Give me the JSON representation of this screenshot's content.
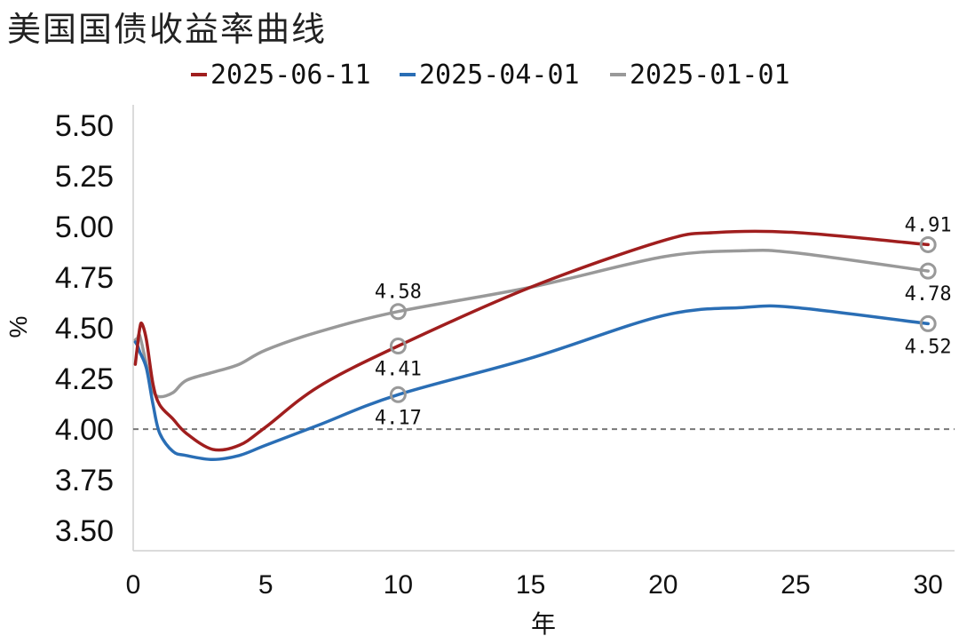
{
  "chart_data": {
    "type": "line",
    "title": "美国国债收益率曲线",
    "xlabel": "年",
    "ylabel": "%",
    "xlim": [
      0,
      31
    ],
    "ylim": [
      3.4,
      5.6
    ],
    "x_ticks": [
      0,
      5,
      10,
      15,
      20,
      25,
      30
    ],
    "x_tick_labels": [
      "0",
      "5",
      "10",
      "15",
      "20",
      "25",
      "30"
    ],
    "y_ticks": [
      3.5,
      3.75,
      4.0,
      4.25,
      4.5,
      4.75,
      5.0,
      5.25,
      5.5
    ],
    "y_tick_labels": [
      "3.50",
      "3.75",
      "4.00",
      "4.25",
      "4.50",
      "4.75",
      "5.00",
      "5.25",
      "5.50"
    ],
    "reference_line": {
      "y": 4.0,
      "style": "dashed",
      "color": "#777777"
    },
    "grid": false,
    "legend_position": "top-center",
    "series": [
      {
        "name": "2025-06-11",
        "color": "#A01E1E",
        "points": [
          [
            0.08,
            4.32
          ],
          [
            0.17,
            4.42
          ],
          [
            0.25,
            4.5
          ],
          [
            0.33,
            4.52
          ],
          [
            0.5,
            4.44
          ],
          [
            0.75,
            4.22
          ],
          [
            1,
            4.12
          ],
          [
            1.5,
            4.05
          ],
          [
            2,
            3.98
          ],
          [
            3,
            3.9
          ],
          [
            4,
            3.92
          ],
          [
            5,
            4.01
          ],
          [
            7,
            4.21
          ],
          [
            10,
            4.41
          ],
          [
            15,
            4.7
          ],
          [
            20,
            4.93
          ],
          [
            22,
            4.97
          ],
          [
            25,
            4.97
          ],
          [
            30,
            4.91
          ]
        ]
      },
      {
        "name": "2025-04-01",
        "color": "#2A6EB5",
        "points": [
          [
            0.08,
            4.43
          ],
          [
            0.17,
            4.41
          ],
          [
            0.25,
            4.38
          ],
          [
            0.5,
            4.3
          ],
          [
            0.75,
            4.12
          ],
          [
            1,
            3.98
          ],
          [
            1.5,
            3.89
          ],
          [
            2,
            3.87
          ],
          [
            3,
            3.85
          ],
          [
            4,
            3.87
          ],
          [
            5,
            3.92
          ],
          [
            7,
            4.02
          ],
          [
            10,
            4.17
          ],
          [
            15,
            4.35
          ],
          [
            20,
            4.56
          ],
          [
            23,
            4.6
          ],
          [
            25,
            4.6
          ],
          [
            30,
            4.52
          ]
        ]
      },
      {
        "name": "2025-01-01",
        "color": "#999999",
        "points": [
          [
            0.08,
            4.44
          ],
          [
            0.17,
            4.45
          ],
          [
            0.25,
            4.46
          ],
          [
            0.5,
            4.32
          ],
          [
            0.75,
            4.19
          ],
          [
            1,
            4.16
          ],
          [
            1.5,
            4.18
          ],
          [
            2,
            4.24
          ],
          [
            3,
            4.28
          ],
          [
            4,
            4.32
          ],
          [
            5,
            4.39
          ],
          [
            7,
            4.48
          ],
          [
            10,
            4.58
          ],
          [
            15,
            4.7
          ],
          [
            20,
            4.85
          ],
          [
            23,
            4.88
          ],
          [
            25,
            4.87
          ],
          [
            30,
            4.78
          ]
        ]
      }
    ],
    "annotations": [
      {
        "series": "2025-06-11",
        "x": 10,
        "y": 4.41,
        "label": "4.41",
        "position": "below"
      },
      {
        "series": "2025-06-11",
        "x": 30,
        "y": 4.91,
        "label": "4.91",
        "position": "above"
      },
      {
        "series": "2025-04-01",
        "x": 10,
        "y": 4.17,
        "label": "4.17",
        "position": "below"
      },
      {
        "series": "2025-04-01",
        "x": 30,
        "y": 4.52,
        "label": "4.52",
        "position": "below"
      },
      {
        "series": "2025-01-01",
        "x": 10,
        "y": 4.58,
        "label": "4.58",
        "position": "above"
      },
      {
        "series": "2025-01-01",
        "x": 30,
        "y": 4.78,
        "label": "4.78",
        "position": "below"
      }
    ],
    "annotation_marker": {
      "shape": "circle",
      "color": "#999999"
    }
  }
}
